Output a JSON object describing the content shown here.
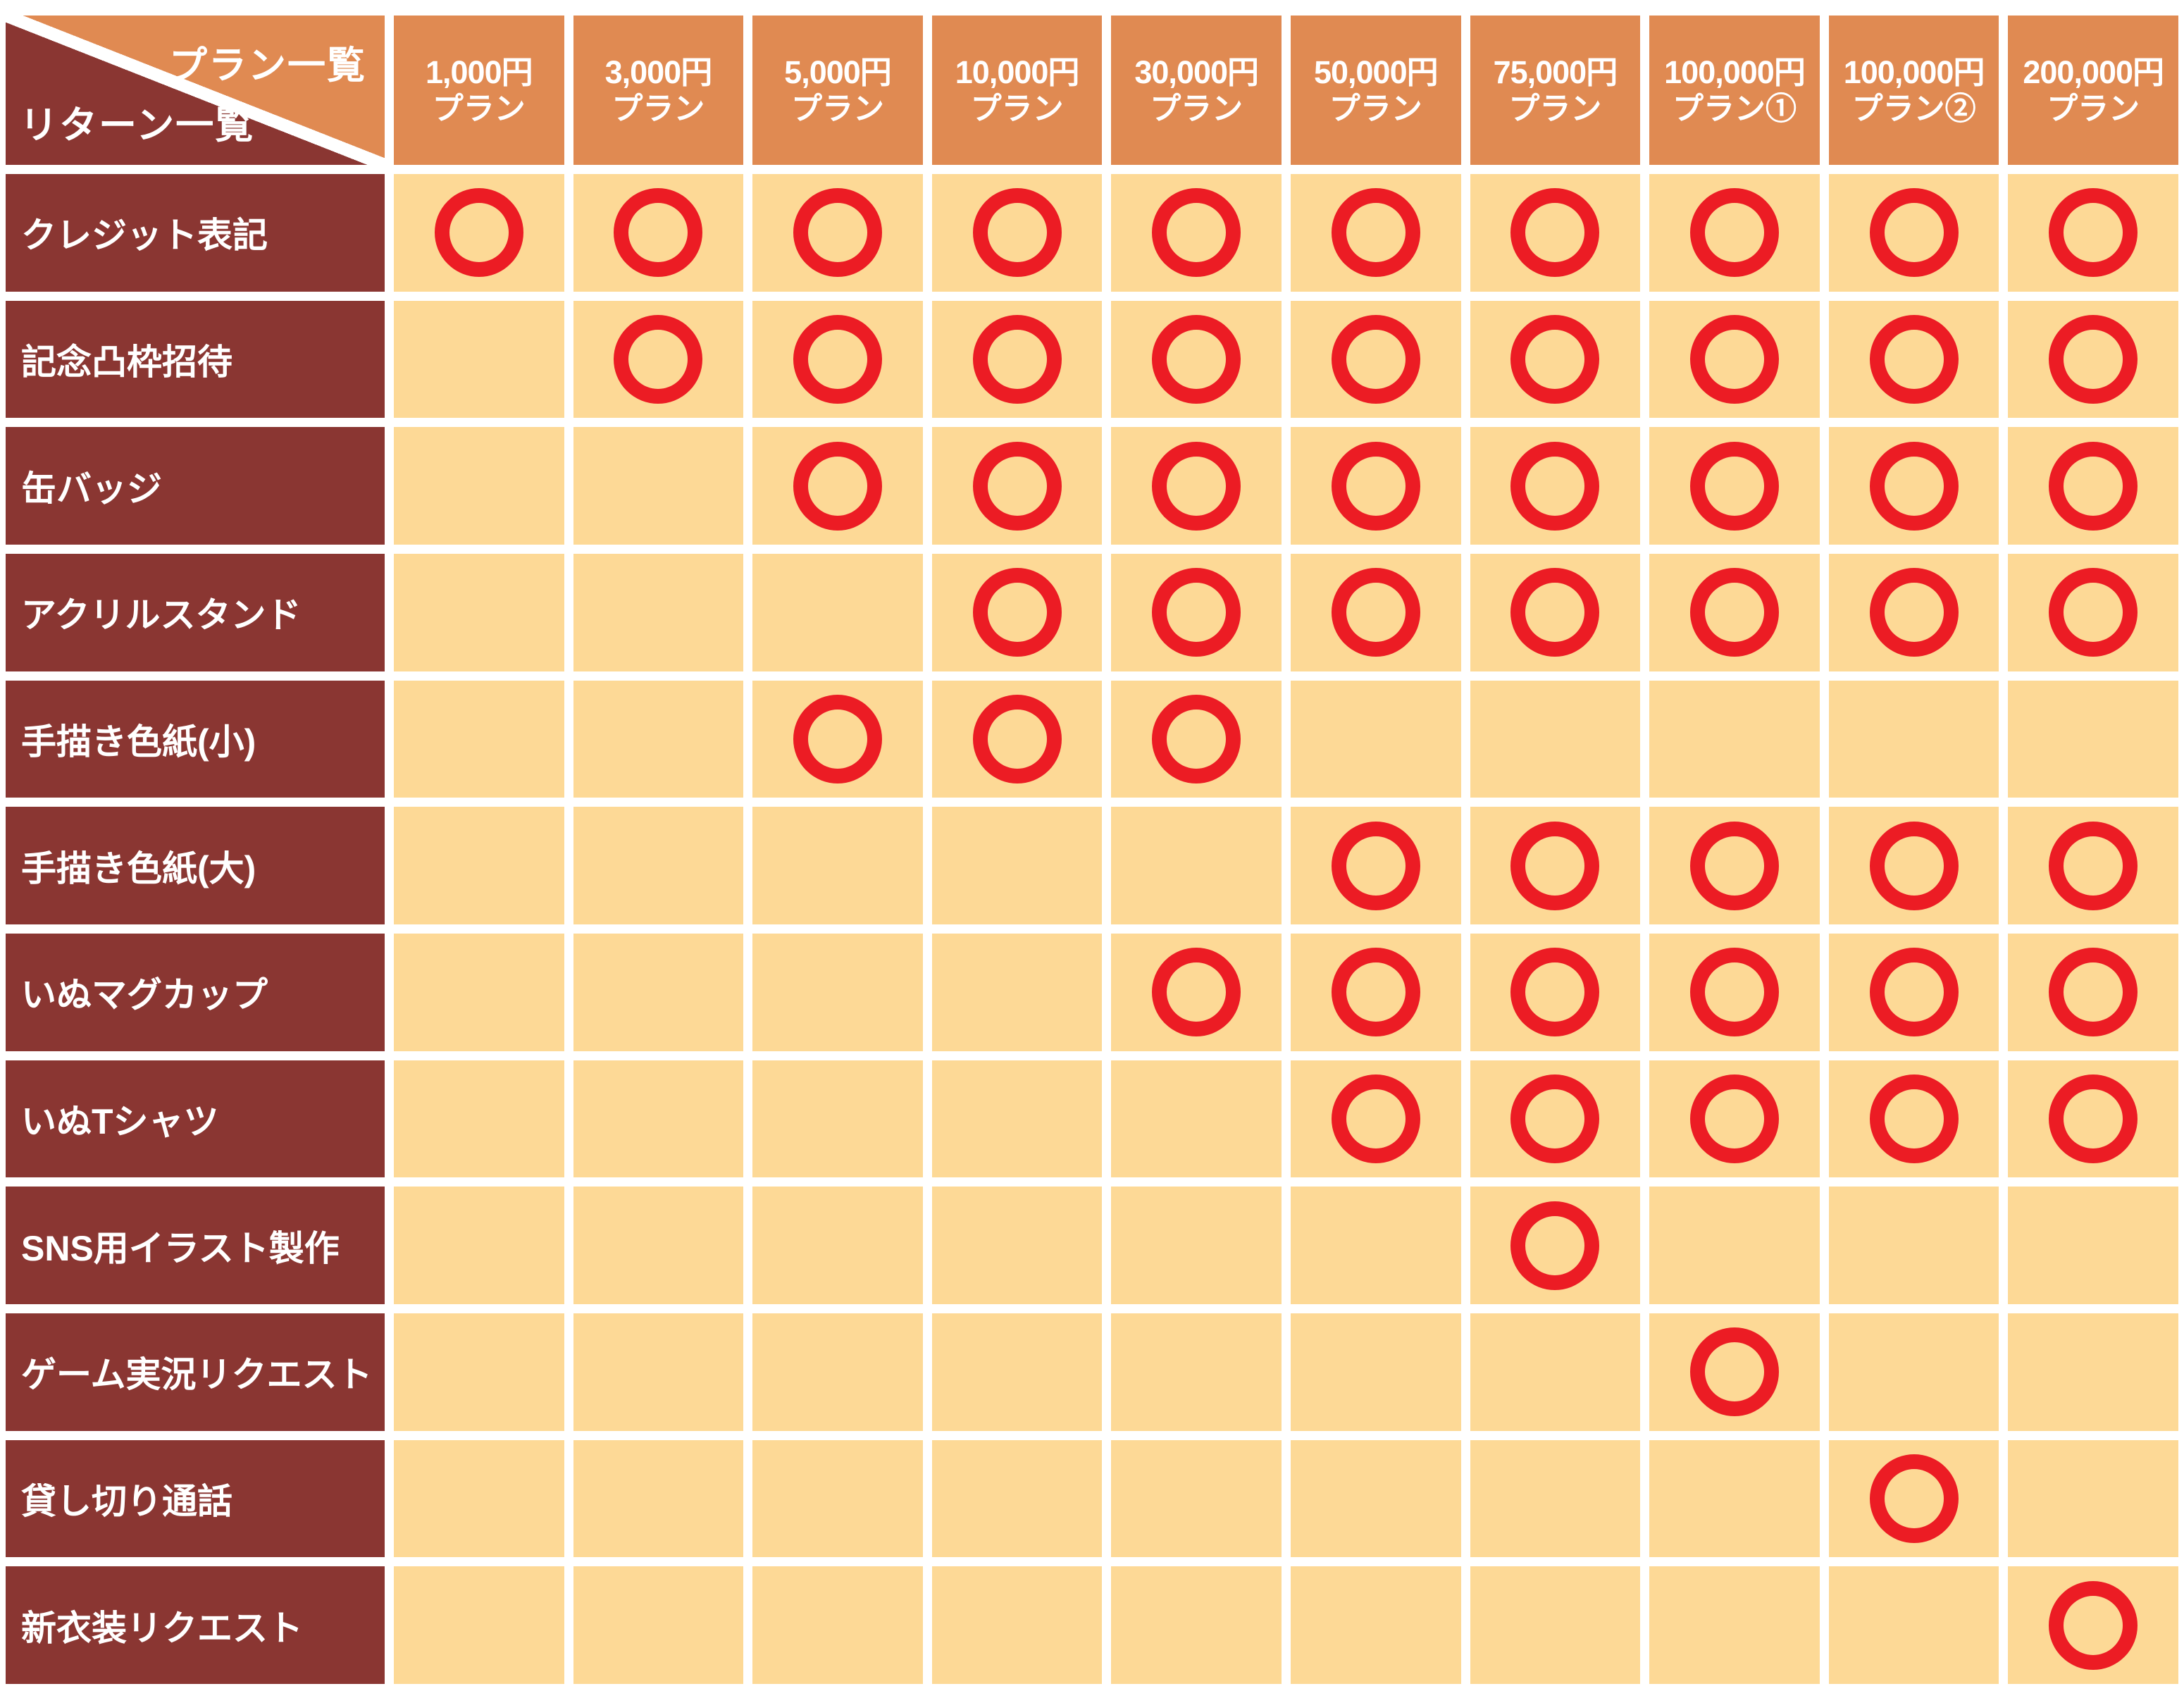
{
  "chart_data": {
    "type": "table",
    "corner": {
      "plans_label": "プラン一覧",
      "returns_label": "リターン一覧"
    },
    "columns": [
      {
        "price": "1,000円",
        "suffix": "プラン"
      },
      {
        "price": "3,000円",
        "suffix": "プラン"
      },
      {
        "price": "5,000円",
        "suffix": "プラン"
      },
      {
        "price": "10,000円",
        "suffix": "プラン"
      },
      {
        "price": "30,000円",
        "suffix": "プラン"
      },
      {
        "price": "50,000円",
        "suffix": "プラン"
      },
      {
        "price": "75,000円",
        "suffix": "プラン"
      },
      {
        "price": "100,000円",
        "suffix": "プラン①"
      },
      {
        "price": "100,000円",
        "suffix": "プラン②"
      },
      {
        "price": "200,000円",
        "suffix": "プラン"
      }
    ],
    "rows": [
      "クレジット表記",
      "記念凸枠招待",
      "缶バッジ",
      "アクリルスタンド",
      "手描き色紙(小)",
      "手描き色紙(大)",
      "いぬマグカップ",
      "いぬTシャツ",
      "SNS用イラスト製作",
      "ゲーム実況リクエスト",
      "貸し切り通話",
      "新衣装リクエスト"
    ],
    "matrix": [
      [
        1,
        1,
        1,
        1,
        1,
        1,
        1,
        1,
        1,
        1
      ],
      [
        0,
        1,
        1,
        1,
        1,
        1,
        1,
        1,
        1,
        1
      ],
      [
        0,
        0,
        1,
        1,
        1,
        1,
        1,
        1,
        1,
        1
      ],
      [
        0,
        0,
        0,
        1,
        1,
        1,
        1,
        1,
        1,
        1
      ],
      [
        0,
        0,
        1,
        1,
        1,
        0,
        0,
        0,
        0,
        0
      ],
      [
        0,
        0,
        0,
        0,
        0,
        1,
        1,
        1,
        1,
        1
      ],
      [
        0,
        0,
        0,
        0,
        1,
        1,
        1,
        1,
        1,
        1
      ],
      [
        0,
        0,
        0,
        0,
        0,
        1,
        1,
        1,
        1,
        1
      ],
      [
        0,
        0,
        0,
        0,
        0,
        0,
        1,
        0,
        0,
        0
      ],
      [
        0,
        0,
        0,
        0,
        0,
        0,
        0,
        1,
        0,
        0
      ],
      [
        0,
        0,
        0,
        0,
        0,
        0,
        0,
        0,
        1,
        0
      ],
      [
        0,
        0,
        0,
        0,
        0,
        0,
        0,
        0,
        0,
        1
      ]
    ],
    "mark_symbol": "red-circle",
    "legend_position": "none",
    "grid": "white-gaps"
  },
  "colors": {
    "orange": "#E08A52",
    "maroon": "#8A3632",
    "cream": "#FDD996",
    "red": "#EC1C24",
    "gap_white": "#FFFFFF"
  }
}
